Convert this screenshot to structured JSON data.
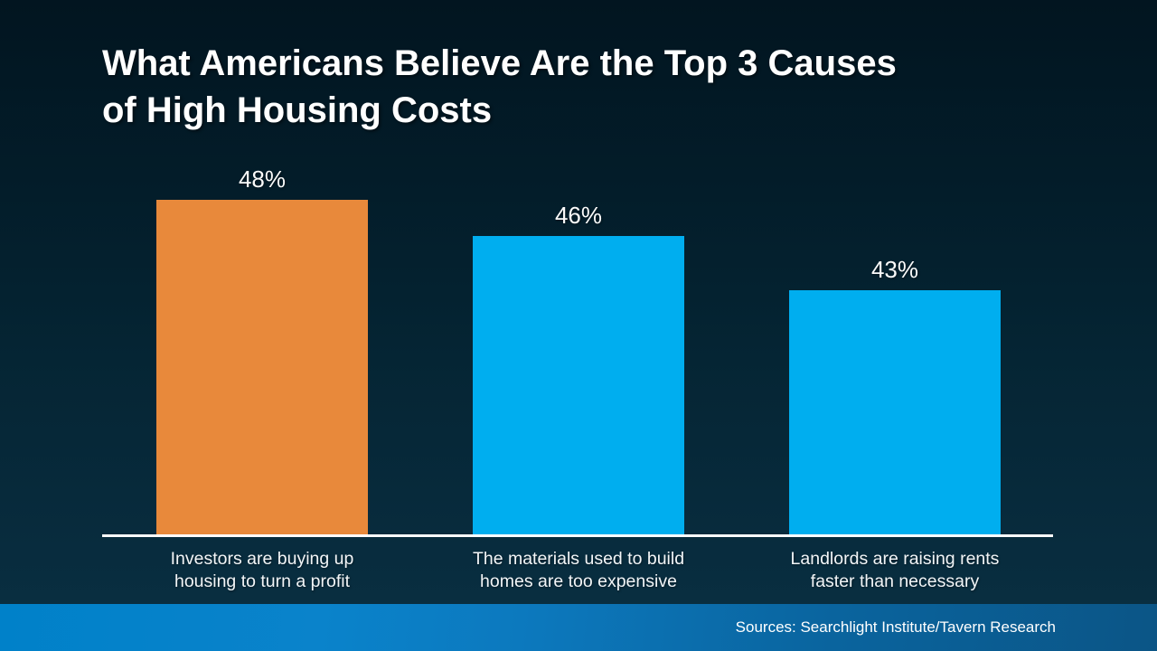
{
  "slide": {
    "title": "What Americans Believe Are the Top 3 Causes\nof High Housing Costs",
    "source_text": "Sources: Searchlight Institute/Tavern Research"
  },
  "colors": {
    "background_top": "#021520",
    "background_bottom": "#0A3042",
    "bar_highlight": "#E8893B",
    "bar_default": "#00AEEF",
    "axis_line": "#FFFFFF",
    "footer_left": "#0081C9",
    "footer_right": "#0B5586",
    "text": "#FFFFFF"
  },
  "chart_data": {
    "type": "bar",
    "title": "What Americans Believe Are the Top 3 Causes of High Housing Costs",
    "categories": [
      [
        "Investors are buying up",
        "housing to turn a profit"
      ],
      [
        "The materials used to build",
        "homes are too expensive"
      ],
      [
        "Landlords are raising rents",
        "faster than necessary"
      ]
    ],
    "values": [
      48,
      46,
      43
    ],
    "value_labels": [
      "48%",
      "46%",
      "43%"
    ],
    "bar_colors": [
      "#E8893B",
      "#00AEEF",
      "#00AEEF"
    ],
    "xlabel": "",
    "ylabel": "",
    "ylim": [
      29.5,
      48
    ],
    "grid": false,
    "legend": false,
    "annotation": "Sources: Searchlight Institute/Tavern Research"
  }
}
